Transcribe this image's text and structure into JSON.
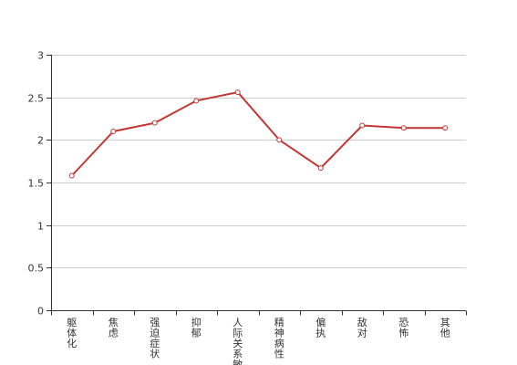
{
  "chart_data": {
    "type": "line",
    "title": "",
    "xlabel": "",
    "ylabel": "",
    "categories": [
      "躯体化",
      "焦虑",
      "强迫症状",
      "抑郁",
      "人际关系敏感",
      "精神病性",
      "偏执",
      "敌对",
      "恐怖",
      "其他"
    ],
    "series": [
      {
        "values": [
          1.58,
          2.1,
          2.2,
          2.46,
          2.56,
          2.0,
          1.67,
          2.17,
          2.14,
          2.14
        ]
      }
    ],
    "ylim": [
      0,
      3
    ],
    "yticks": [
      0,
      0.5,
      1,
      1.5,
      2,
      2.5,
      3
    ],
    "ytick_labels": [
      "0",
      "0.5",
      "1",
      "1.5",
      "2",
      "2.5",
      "3"
    ],
    "grid": true,
    "legend": "none",
    "colors": {
      "series": "#c23531",
      "grid": "#cccccc",
      "axis": "#333333"
    }
  }
}
